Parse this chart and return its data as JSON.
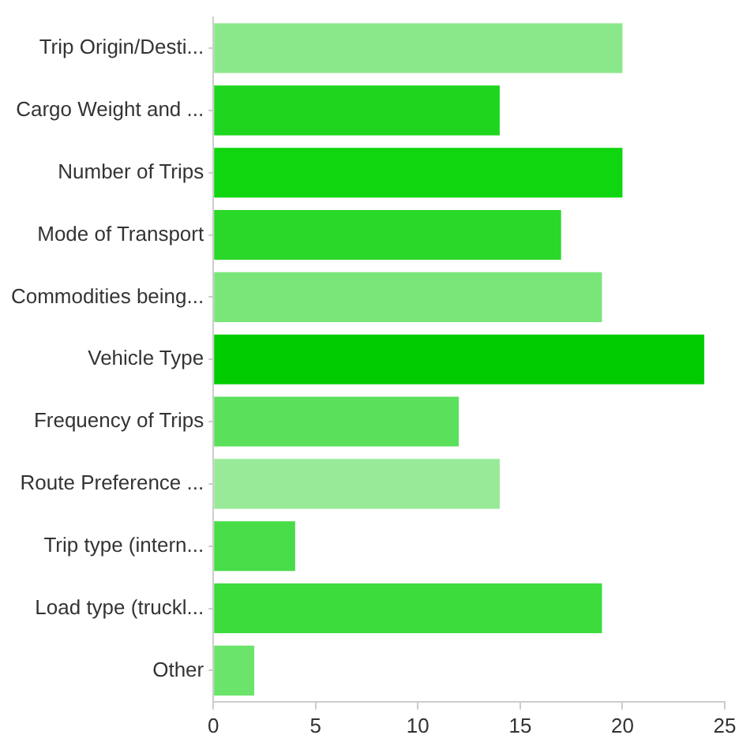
{
  "chart_data": {
    "type": "bar",
    "orientation": "horizontal",
    "categories": [
      "Trip Origin/Desti...",
      "Cargo Weight and ...",
      "Number of Trips",
      "Mode of Transport",
      "Commodities being...",
      "Vehicle Type",
      "Frequency of Trips",
      "Route Preference ...",
      "Trip type (intern...",
      "Load type (truckl...",
      "Other"
    ],
    "values": [
      20,
      14,
      20,
      17,
      19,
      24,
      12,
      14,
      4,
      19,
      2
    ],
    "colors": [
      "#8ae88a",
      "#1fd61f",
      "#0fd60f",
      "#2ad82a",
      "#7ae67a",
      "#00cc00",
      "#5ae05a",
      "#98ea98",
      "#48dc48",
      "#3cdc3c",
      "#6ae46a"
    ],
    "xlim": [
      0,
      25
    ],
    "xticks": [
      0,
      5,
      10,
      15,
      20,
      25
    ],
    "legend": false
  }
}
